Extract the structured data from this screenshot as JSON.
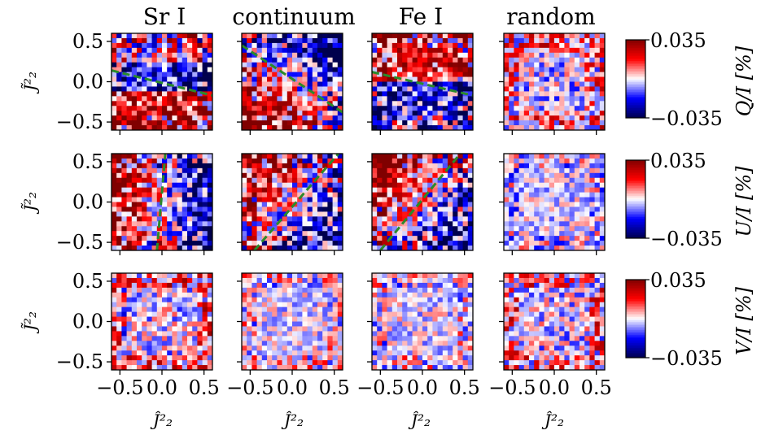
{
  "chart_data": {
    "type": "heatmap",
    "layout": "3 rows x 4 columns of 2D binned maps",
    "column_titles": [
      "Sr I",
      "continuum",
      "Fe I",
      "random"
    ],
    "row_quantities": [
      "Q/I [%]",
      "U/I [%]",
      "V/I [%]"
    ],
    "xlabel": "Ĵ²₂",
    "ylabel": "J̃²₂",
    "xlim": [
      -0.6,
      0.6
    ],
    "ylim": [
      -0.6,
      0.6
    ],
    "x_ticks": [
      "−0.5",
      "0.0",
      "0.5"
    ],
    "y_ticks": [
      "0.5",
      "0.0",
      "−0.5"
    ],
    "colorbar": {
      "colormap": "seismic",
      "min": -0.035,
      "max": 0.035,
      "tick_labels": [
        "0.035",
        "−0.035"
      ],
      "colors": {
        "low": "#00004c",
        "mid_low": "#0000ff",
        "zero": "#ffffff",
        "mid_high": "#ff0000",
        "high": "#800000"
      }
    },
    "grid_bins": 20,
    "fitted_lines": {
      "color": "#2a8a2a",
      "style": "dashed",
      "lines": [
        {
          "row": 0,
          "col": 0,
          "x": [
            -0.6,
            0.6
          ],
          "y": [
            0.14,
            -0.17
          ]
        },
        {
          "row": 0,
          "col": 1,
          "x": [
            -0.6,
            0.6
          ],
          "y": [
            0.45,
            -0.38
          ]
        },
        {
          "row": 0,
          "col": 2,
          "x": [
            -0.6,
            0.6
          ],
          "y": [
            0.12,
            -0.17
          ]
        },
        {
          "row": 1,
          "col": 0,
          "x": [
            -0.06,
            0.04
          ],
          "y": [
            -0.6,
            0.6
          ]
        },
        {
          "row": 1,
          "col": 1,
          "x": [
            -0.45,
            0.55
          ],
          "y": [
            -0.6,
            0.6
          ]
        },
        {
          "row": 1,
          "col": 2,
          "x": [
            -0.5,
            0.45
          ],
          "y": [
            -0.6,
            0.6
          ]
        }
      ]
    },
    "panels": [
      {
        "row": 0,
        "col": 0,
        "pattern": "red lower half, blue upper band",
        "amplitude": 0.032
      },
      {
        "row": 0,
        "col": 1,
        "pattern": "red lower-left, blue upper-right",
        "amplitude": 0.03
      },
      {
        "row": 0,
        "col": 2,
        "pattern": "red upper, blue lower",
        "amplitude": 0.03
      },
      {
        "row": 0,
        "col": 3,
        "pattern": "noisy, red-ish edges",
        "amplitude": 0.02
      },
      {
        "row": 1,
        "col": 0,
        "pattern": "red left, blue right",
        "amplitude": 0.03
      },
      {
        "row": 1,
        "col": 1,
        "pattern": "red upper-left, blue lower-right",
        "amplitude": 0.03
      },
      {
        "row": 1,
        "col": 2,
        "pattern": "red upper-left, blue lower-right",
        "amplitude": 0.03
      },
      {
        "row": 1,
        "col": 3,
        "pattern": "noisy, faint",
        "amplitude": 0.015
      },
      {
        "row": 2,
        "col": 0,
        "pattern": "noisy, red top and corners",
        "amplitude": 0.02
      },
      {
        "row": 2,
        "col": 1,
        "pattern": "noisy, faint",
        "amplitude": 0.015
      },
      {
        "row": 2,
        "col": 2,
        "pattern": "noisy, faint",
        "amplitude": 0.015
      },
      {
        "row": 2,
        "col": 3,
        "pattern": "noisy, red-ish edges",
        "amplitude": 0.02
      }
    ]
  }
}
